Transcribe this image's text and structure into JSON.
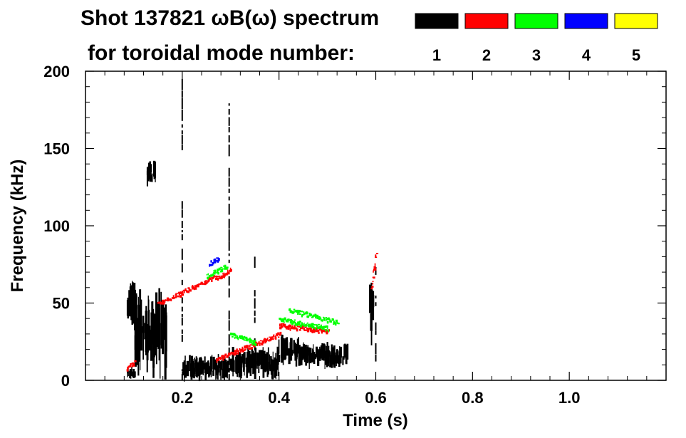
{
  "chart_data": {
    "type": "heatmap",
    "title_line1": "Shot 137821 ωB(ω) spectrum",
    "title_line2": "for toroidal mode number:",
    "xlabel": "Time (s)",
    "ylabel": "Frequency (kHz)",
    "xlim": [
      0.0,
      1.2
    ],
    "ylim": [
      0,
      200
    ],
    "x_ticks": [
      0.2,
      0.4,
      0.6,
      0.8,
      1.0
    ],
    "x_tick_labels": [
      "0.2",
      "0.4",
      "0.6",
      "0.8",
      "1.0"
    ],
    "y_ticks": [
      0,
      50,
      100,
      150,
      200
    ],
    "y_tick_labels": [
      "0",
      "50",
      "100",
      "150",
      "200"
    ],
    "legend": [
      {
        "label": "1",
        "color": "#000000"
      },
      {
        "label": "2",
        "color": "#ff0000"
      },
      {
        "label": "3",
        "color": "#00ff00"
      },
      {
        "label": "4",
        "color": "#0000ff"
      },
      {
        "label": "5",
        "color": "#ffff00"
      }
    ],
    "features": [
      {
        "mode": "1",
        "kind": "blob",
        "t": [
          0.085,
          0.105
        ],
        "f": [
          38,
          62
        ]
      },
      {
        "mode": "1",
        "kind": "blob",
        "t": [
          0.085,
          0.1
        ],
        "f": [
          2,
          8
        ]
      },
      {
        "mode": "1",
        "kind": "blob",
        "t": [
          0.125,
          0.145
        ],
        "f": [
          128,
          140
        ]
      },
      {
        "mode": "1",
        "kind": "blob",
        "t": [
          0.1,
          0.165
        ],
        "f": [
          10,
          50
        ]
      },
      {
        "mode": "1",
        "kind": "blob",
        "t": [
          0.2,
          0.3
        ],
        "f": [
          2,
          14
        ]
      },
      {
        "mode": "1",
        "kind": "blob",
        "t": [
          0.3,
          0.4
        ],
        "f": [
          4,
          18
        ]
      },
      {
        "mode": "1",
        "kind": "blob",
        "t": [
          0.395,
          0.44
        ],
        "f": [
          12,
          26
        ]
      },
      {
        "mode": "1",
        "kind": "blob",
        "t": [
          0.44,
          0.54
        ],
        "f": [
          10,
          22
        ]
      },
      {
        "mode": "1",
        "kind": "blob",
        "t": [
          0.585,
          0.595
        ],
        "f": [
          30,
          60
        ]
      },
      {
        "mode": "1",
        "kind": "line",
        "t": [
          0.2,
          0.2
        ],
        "f": [
          0,
          195
        ]
      },
      {
        "mode": "1",
        "kind": "line",
        "t": [
          0.297,
          0.297
        ],
        "f": [
          0,
          190
        ]
      },
      {
        "mode": "1",
        "kind": "line",
        "t": [
          0.35,
          0.35
        ],
        "f": [
          5,
          80
        ]
      },
      {
        "mode": "1",
        "kind": "line",
        "t": [
          0.6,
          0.6
        ],
        "f": [
          0,
          90
        ]
      },
      {
        "mode": "2",
        "kind": "trace",
        "t": [
          0.15,
          0.27
        ],
        "f": [
          50,
          68
        ]
      },
      {
        "mode": "2",
        "kind": "trace",
        "t": [
          0.27,
          0.3
        ],
        "f": [
          66,
          72
        ]
      },
      {
        "mode": "2",
        "kind": "trace",
        "t": [
          0.27,
          0.4
        ],
        "f": [
          14,
          30
        ]
      },
      {
        "mode": "2",
        "kind": "trace",
        "t": [
          0.4,
          0.5
        ],
        "f": [
          36,
          32
        ]
      },
      {
        "mode": "2",
        "kind": "trace",
        "t": [
          0.59,
          0.6
        ],
        "f": [
          60,
          82
        ]
      },
      {
        "mode": "2",
        "kind": "trace",
        "t": [
          0.085,
          0.1
        ],
        "f": [
          8,
          12
        ]
      },
      {
        "mode": "3",
        "kind": "trace",
        "t": [
          0.25,
          0.29
        ],
        "f": [
          68,
          74
        ]
      },
      {
        "mode": "3",
        "kind": "trace",
        "t": [
          0.42,
          0.52
        ],
        "f": [
          46,
          38
        ]
      },
      {
        "mode": "3",
        "kind": "trace",
        "t": [
          0.4,
          0.5
        ],
        "f": [
          40,
          34
        ]
      },
      {
        "mode": "3",
        "kind": "trace",
        "t": [
          0.3,
          0.35
        ],
        "f": [
          30,
          25
        ]
      },
      {
        "mode": "4",
        "kind": "trace",
        "t": [
          0.255,
          0.275
        ],
        "f": [
          76,
          79
        ]
      }
    ]
  }
}
